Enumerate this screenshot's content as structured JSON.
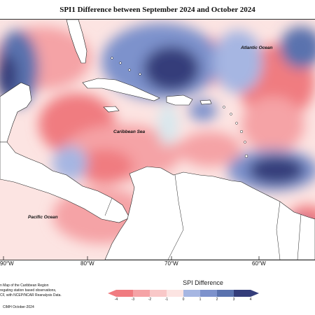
{
  "title": "SPI1 Difference between September 2024 and October 2024",
  "map_labels": {
    "atlantic": "Atlantic Ocean",
    "caribbean": "Caribbean Sea",
    "pacific": "Pacific Ocean"
  },
  "longitude_labels": [
    "90°W",
    "80°W",
    "70°W",
    "60°W"
  ],
  "footer_notes": [
    "n Map of the Caribbean Region",
    "regating station based observations,",
    "CF, with NCEP/NCAR Reanalysis Data.",
    "CIMH October-2024"
  ],
  "legend": {
    "title": "SPI Difference",
    "ticks": [
      "-4",
      "-3",
      "-2",
      "-1",
      "0",
      "1",
      "2",
      "3",
      "4"
    ],
    "colors": [
      "#f07b80",
      "#f5a3a6",
      "#f9c8c8",
      "#fce4e2",
      "#d8e8ee",
      "#a6b6e2",
      "#7d92cc",
      "#5a72ae",
      "#343d7a"
    ]
  },
  "colors": {
    "strong_negative": "#f07b80",
    "negative": "#f5a3a6",
    "weak_negative": "#fce4e2",
    "neutral": "#dde9ee",
    "weak_positive": "#a6b6e2",
    "positive": "#6e86b6",
    "strong_positive": "#343d7a",
    "land": "#ffffff"
  }
}
